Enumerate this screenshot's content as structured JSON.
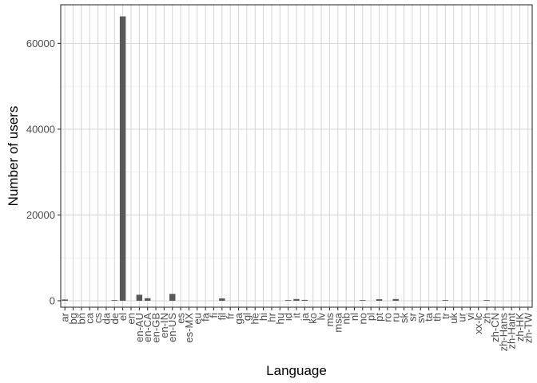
{
  "chart_data": {
    "type": "bar",
    "xlabel": "Language",
    "ylabel": "Number of users",
    "ylim": [
      -1500,
      69000
    ],
    "yticks": [
      0,
      20000,
      40000,
      60000
    ],
    "ytick_labels": [
      "0",
      "20000",
      "40000",
      "60000"
    ],
    "grid": true,
    "categories": [
      "ar",
      "bg",
      "bn",
      "ca",
      "cs",
      "da",
      "de",
      "el",
      "en",
      "en-AU",
      "en-CA",
      "en-GB",
      "en-IN",
      "en-US",
      "es",
      "es-MX",
      "eu",
      "fa",
      "fi",
      "fil",
      "fr",
      "ga",
      "gl",
      "he",
      "hi",
      "hr",
      "hu",
      "id",
      "it",
      "ja",
      "ko",
      "lv",
      "ms",
      "msa",
      "nb",
      "nl",
      "no",
      "pl",
      "pt",
      "ro",
      "ru",
      "sk",
      "sr",
      "sv",
      "ta",
      "th",
      "tr",
      "uk",
      "ur",
      "vi",
      "xx-lc",
      "zh",
      "zh-CN",
      "zh-Hans",
      "zh-Hant",
      "zh-HK",
      "zh-TW"
    ],
    "values": [
      300,
      0,
      0,
      0,
      0,
      0,
      150,
      66300,
      0,
      1400,
      600,
      0,
      0,
      1600,
      0,
      0,
      0,
      0,
      0,
      550,
      0,
      0,
      0,
      0,
      0,
      0,
      0,
      150,
      400,
      200,
      0,
      0,
      0,
      0,
      0,
      0,
      150,
      0,
      350,
      0,
      400,
      0,
      0,
      0,
      0,
      0,
      150,
      0,
      0,
      0,
      0,
      150,
      0,
      0,
      0,
      0,
      0
    ],
    "bar_color": "#595959",
    "grid_color": "#d9d9d9",
    "panel_border_color": "#333333"
  }
}
